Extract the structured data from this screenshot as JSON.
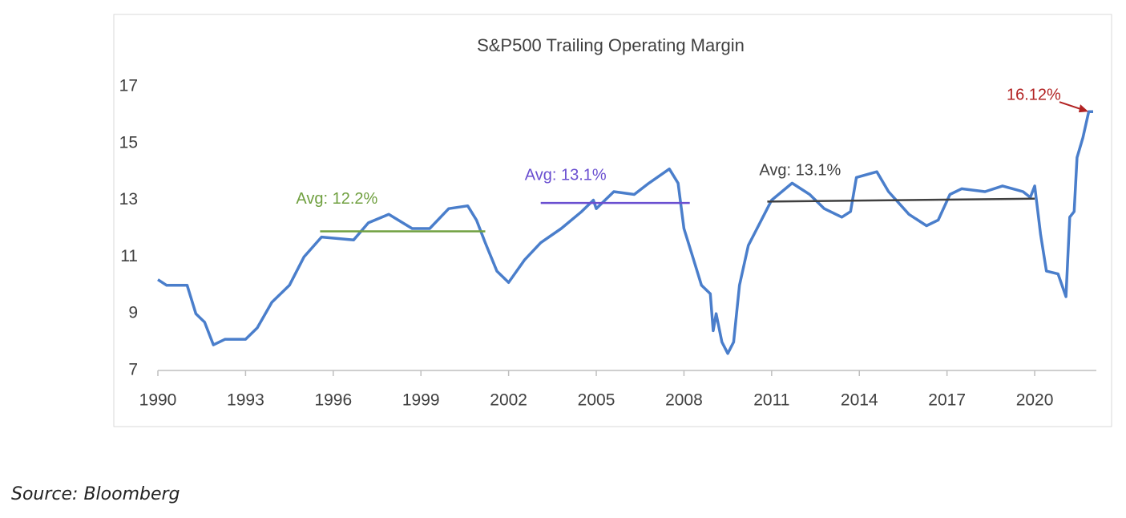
{
  "chart_data": {
    "type": "line",
    "title": "S&P500 Trailing Operating Margin",
    "source": "Source:  Bloomberg",
    "xlim": [
      1990,
      2022
    ],
    "xticks": [
      1990,
      1993,
      1996,
      1999,
      2002,
      2005,
      2008,
      2011,
      2014,
      2017,
      2020
    ],
    "ylim": [
      7,
      17
    ],
    "yticks": [
      7,
      9,
      11,
      13,
      15,
      17
    ],
    "series": [
      {
        "color": "#4a7ecb",
        "x": [
          1990,
          1990.3,
          1991.0,
          1991.3,
          1991.6,
          1991.9,
          1992.3,
          1993.0,
          1993.4,
          1993.9,
          1994.5,
          1995.0,
          1995.6,
          1996.7,
          1997.2,
          1997.9,
          1998.7,
          1999.3,
          1999.95,
          2000.6,
          2000.9,
          2001.2,
          2001.6,
          2002.0,
          2002.55,
          2003.1,
          2003.8,
          2004.5,
          2004.9,
          2005.0,
          2005.6,
          2006.3,
          2006.8,
          2007.5,
          2007.8,
          2008.0,
          2008.3,
          2008.6,
          2008.9,
          2009.0,
          2009.1,
          2009.3,
          2009.5,
          2009.7,
          2009.9,
          2010.2,
          2010.5,
          2010.8,
          2011.0,
          2011.7,
          2012.3,
          2012.8,
          2013.4,
          2013.7,
          2013.9,
          2014.6,
          2015.0,
          2015.7,
          2016.3,
          2016.7,
          2017.1,
          2017.5,
          2018.3,
          2018.9,
          2019.6,
          2019.85,
          2020.0,
          2020.2,
          2020.4,
          2020.8,
          2021.07,
          2021.2,
          2021.35,
          2021.45,
          2021.65,
          2021.85,
          2022.0
        ],
        "values": [
          10.2,
          10.0,
          10.0,
          9.0,
          8.7,
          7.9,
          8.1,
          8.1,
          8.5,
          9.4,
          10.0,
          11.0,
          11.7,
          11.6,
          12.2,
          12.5,
          12.0,
          12.0,
          12.7,
          12.8,
          12.3,
          11.5,
          10.5,
          10.1,
          10.9,
          11.5,
          12.0,
          12.6,
          13.0,
          12.7,
          13.3,
          13.2,
          13.6,
          14.1,
          13.6,
          12.0,
          11.0,
          10.0,
          9.7,
          8.4,
          9.0,
          8.0,
          7.6,
          8.0,
          10.0,
          11.4,
          12.0,
          12.6,
          13.0,
          13.6,
          13.2,
          12.7,
          12.4,
          12.6,
          13.8,
          14.0,
          13.3,
          12.5,
          12.1,
          12.3,
          13.2,
          13.4,
          13.3,
          13.5,
          13.3,
          13.1,
          13.5,
          11.8,
          10.5,
          10.4,
          9.6,
          12.4,
          12.6,
          14.5,
          15.2,
          16.12,
          16.12
        ]
      }
    ],
    "reference_lines": [
      {
        "label": "Avg: 12.2%",
        "color": "#70a040",
        "x": [
          1995.55,
          2001.2
        ],
        "y": [
          11.9,
          11.9
        ]
      },
      {
        "label": "Avg: 13.1%",
        "color": "#6a4fd0",
        "x": [
          2003.1,
          2008.2
        ],
        "y": [
          12.9,
          12.9
        ]
      },
      {
        "label": "Avg: 13.1%",
        "color": "#404040",
        "x": [
          2010.85,
          2020.0
        ],
        "y": [
          12.95,
          13.05
        ]
      }
    ],
    "last_value_label": {
      "text": "16.12%",
      "color": "#b22222"
    }
  }
}
